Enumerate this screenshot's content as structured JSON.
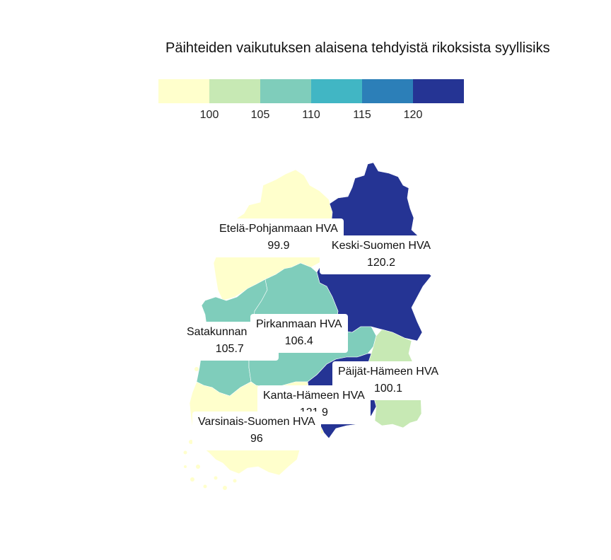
{
  "title": "Päihteiden vaikutuksen alaisena tehdyistä rikoksista syyllisiks",
  "legend": {
    "colors": [
      "#ffffcc",
      "#c7e9b4",
      "#7fcdbb",
      "#41b6c4",
      "#2c7fb8",
      "#253494"
    ],
    "ticks": [
      "100",
      "105",
      "110",
      "115",
      "120"
    ]
  },
  "regions": [
    {
      "id": "etela-pohjanmaa",
      "name": "Etelä-Pohjanmaan HVA",
      "value": "99.9",
      "color": "#ffffcc"
    },
    {
      "id": "keski-suomi",
      "name": "Keski-Suomen HVA",
      "value": "120.2",
      "color": "#253494"
    },
    {
      "id": "satakunta",
      "name": "Satakunnan HVA",
      "value": "105.7",
      "color": "#7fcdbb"
    },
    {
      "id": "pirkanmaa",
      "name": "Pirkanmaan HVA",
      "value": "106.4",
      "color": "#7fcdbb"
    },
    {
      "id": "paijat-hame",
      "name": "Päijät-Hämeen HVA",
      "value": "100.1",
      "color": "#c7e9b4"
    },
    {
      "id": "kanta-hame",
      "name": "Kanta-Hämeen HVA",
      "value": "121.9",
      "color": "#253494"
    },
    {
      "id": "varsinais-suomi",
      "name": "Varsinais-Suomen HVA",
      "value": "96",
      "color": "#ffffcc"
    }
  ]
}
